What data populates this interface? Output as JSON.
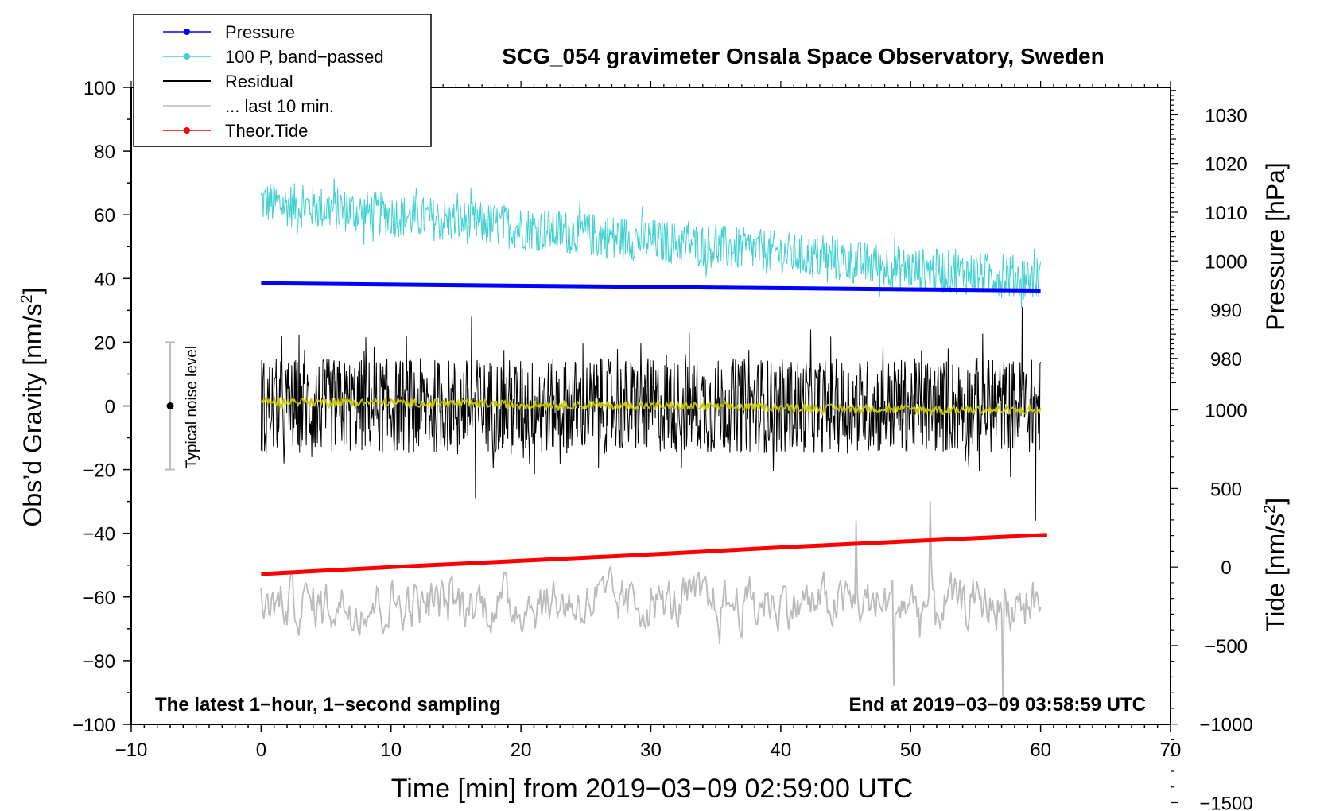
{
  "chart_data": {
    "type": "line",
    "title": "SCG_054 gravimeter Onsala Space Observatory, Sweden",
    "xlabel": "Time [min] from 2019−03−09 02:59:00 UTC",
    "ylabel": "Obs’d Gravity [nm/s",
    "ylabel_sup": "2",
    "ylabel_end": "]",
    "y2label": "Pressure [hPa]",
    "y3label": "Tide [nm/s",
    "y3label_sup": "2",
    "y3label_end": "]",
    "xlim": [
      -10,
      70
    ],
    "ylim": [
      -100,
      100
    ],
    "xticks": [
      -10,
      0,
      10,
      20,
      30,
      40,
      50,
      60,
      70
    ],
    "xtick_labels": [
      "−10",
      "0",
      "10",
      "20",
      "30",
      "40",
      "50",
      "60",
      "70"
    ],
    "yticks": [
      -100,
      -80,
      -60,
      -40,
      -20,
      0,
      20,
      40,
      60,
      80,
      100
    ],
    "ytick_labels": [
      "−100",
      "−80",
      "−60",
      "−40",
      "−20",
      "0",
      "20",
      "40",
      "60",
      "80",
      "100"
    ],
    "pressure_axis": {
      "ticks": [
        980,
        990,
        1000,
        1010,
        1020,
        1030
      ],
      "tick_labels": [
        "980",
        "990",
        "1000",
        "1010",
        "1020",
        "1030"
      ],
      "gravity_at_1000hPa": 45.5,
      "gravity_per_hPa": 1.53
    },
    "tide_axis": {
      "ticks": [
        -1500,
        -1000,
        -500,
        0,
        500,
        1000
      ],
      "tick_labels": [
        "−1500",
        "−1000",
        "−500",
        "0",
        "500",
        "1000"
      ],
      "gravity_at_0": -50.6,
      "gravity_per_unit": 0.04933
    },
    "noise_bar": {
      "x": -7,
      "y": 0,
      "low": -20,
      "high": 20,
      "label": "Typical noise level"
    },
    "annotations": {
      "left": "The latest 1−hour, 1−second sampling",
      "right": "End at 2019−03−09 03:58:59 UTC"
    },
    "legend": {
      "position": "top-left",
      "entries": [
        {
          "label": "Pressure",
          "color": "#0000ff",
          "marker": true
        },
        {
          "label": "100 P, band−passed",
          "color": "#40d0d0",
          "marker": true
        },
        {
          "label": "Residual",
          "color": "#000000",
          "marker": false
        },
        {
          "label": "... last 10 min.",
          "color": "#bbbbbb",
          "marker": false
        },
        {
          "label": "Theor.Tide",
          "color": "#ff0000",
          "marker": true
        }
      ]
    },
    "series": [
      {
        "name": "Pressure",
        "color": "#0000ff",
        "axis": "gravity",
        "x": [
          0,
          60
        ],
        "values": [
          38.5,
          36.2
        ]
      },
      {
        "name": "100 P, band−passed",
        "color": "#40d0d0",
        "axis": "gravity",
        "x": [
          0,
          10,
          20,
          30,
          40,
          50,
          60
        ],
        "values": [
          64,
          60,
          56,
          52,
          48,
          43,
          40
        ],
        "amplitude": 7
      },
      {
        "name": "Residual",
        "color": "#000000",
        "axis": "gravity",
        "x": [
          0,
          60
        ],
        "values": [
          0,
          0
        ],
        "amplitude": 15,
        "extremes": [
          [
            16.2,
            28
          ],
          [
            16.5,
            -29
          ],
          [
            58.6,
            31
          ],
          [
            59.6,
            -36
          ]
        ]
      },
      {
        "name": "Residual (smoothed)",
        "color": "#c8c800",
        "axis": "gravity",
        "x": [
          0,
          60
        ],
        "values": [
          1.5,
          -1.5
        ],
        "amplitude": 1.2
      },
      {
        "name": "... last 10 min.",
        "color": "#bbbbbb",
        "axis": "gravity",
        "x": [
          0,
          60
        ],
        "values": [
          -62,
          -62
        ],
        "amplitude": 14,
        "extremes": [
          [
            51.5,
            -30
          ],
          [
            57.1,
            -93
          ],
          [
            45.8,
            -36
          ],
          [
            48.7,
            -88
          ]
        ]
      },
      {
        "name": "Theor.Tide",
        "color": "#ff0000",
        "axis": "tide",
        "x": [
          0,
          10,
          20,
          30,
          40,
          50,
          60.5
        ],
        "values": [
          -45,
          0,
          40,
          80,
          125,
          165,
          205
        ]
      }
    ]
  }
}
